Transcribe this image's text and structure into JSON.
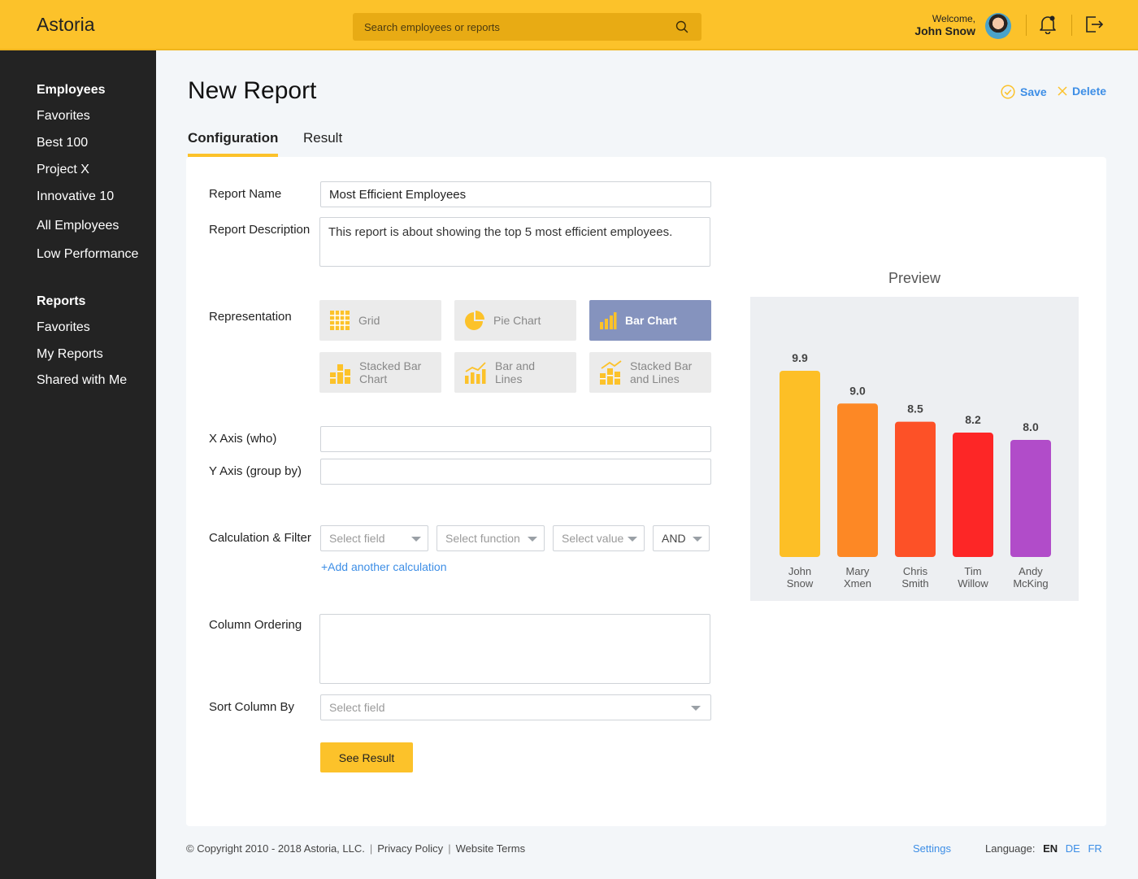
{
  "header": {
    "logo": "Astoria",
    "search_placeholder": "Search employees or reports",
    "welcome_label": "Welcome,",
    "user_name": "John Snow"
  },
  "sidebar": {
    "employees_heading": "Employees",
    "employees_items": [
      "Favorites",
      "Best 100",
      "Project X",
      "Innovative 10",
      "All Employees",
      "Low Performance"
    ],
    "reports_heading": "Reports",
    "reports_items": [
      "Favorites",
      "My Reports",
      "Shared with Me"
    ]
  },
  "page": {
    "title": "New Report",
    "save_label": "Save",
    "delete_label": "Delete",
    "tabs": [
      "Configuration",
      "Result"
    ],
    "active_tab": "Configuration"
  },
  "form": {
    "report_name_label": "Report Name",
    "report_name_value": "Most Efficient Employees",
    "report_description_label": "Report Description",
    "report_description_value": "This report is about showing the top 5 most efficient employees.",
    "representation_label": "Representation",
    "representations": [
      {
        "line1": "Grid",
        "line2": "",
        "icon": "grid-icon"
      },
      {
        "line1": "Pie Chart",
        "line2": "",
        "icon": "pie-chart-icon"
      },
      {
        "line1": "Bar Chart",
        "line2": "",
        "icon": "bar-chart-icon"
      },
      {
        "line1": "Stacked Bar",
        "line2": "Chart",
        "icon": "stacked-bar-chart-icon"
      },
      {
        "line1": "Bar and",
        "line2": "Lines",
        "icon": "bar-and-lines-icon"
      },
      {
        "line1": "Stacked Bar",
        "line2": "and Lines",
        "icon": "stacked-bar-and-lines-icon"
      }
    ],
    "selected_representation": "Bar Chart",
    "x_axis_label": "X Axis (who)",
    "x_axis_value": "",
    "y_axis_label": "Y Axis (group by)",
    "y_axis_value": "",
    "calc_label": "Calculation & Filter",
    "calc_field_placeholder": "Select field",
    "calc_function_placeholder": "Select function",
    "calc_value_placeholder": "Select value",
    "calc_operator": "AND",
    "add_calc_link": "+Add another calculation",
    "column_ordering_label": "Column Ordering",
    "sort_label": "Sort Column By",
    "sort_placeholder": "Select field",
    "submit_label": "See Result"
  },
  "preview": {
    "title": "Preview"
  },
  "chart_data": {
    "type": "bar",
    "categories": [
      [
        "John",
        "Snow"
      ],
      [
        "Mary",
        "Xmen"
      ],
      [
        "Chris",
        "Smith"
      ],
      [
        "Tim",
        "Willow"
      ],
      [
        "Andy",
        "McKing"
      ]
    ],
    "values": [
      9.9,
      9.0,
      8.5,
      8.2,
      8.0
    ],
    "value_labels": [
      "9.9",
      "9.0",
      "8.5",
      "8.2",
      "8.0"
    ],
    "colors": [
      "#fdbf26",
      "#fd8825",
      "#fd5127",
      "#fd2626",
      "#b14cc9"
    ],
    "ylim": [
      0,
      10
    ],
    "grid": false,
    "legend": "none"
  },
  "footer": {
    "copyright": "© Copyright 2010 - 2018 Astoria, LLC.",
    "privacy": "Privacy Policy",
    "terms": "Website Terms",
    "settings": "Settings",
    "language_label": "Language:",
    "languages": [
      "EN",
      "DE",
      "FR"
    ],
    "active_language": "EN"
  },
  "colors": {
    "accent": "#fcc22a",
    "link": "#3d8ee6",
    "sidebar": "#232323",
    "selected_representation": "#8593be"
  }
}
